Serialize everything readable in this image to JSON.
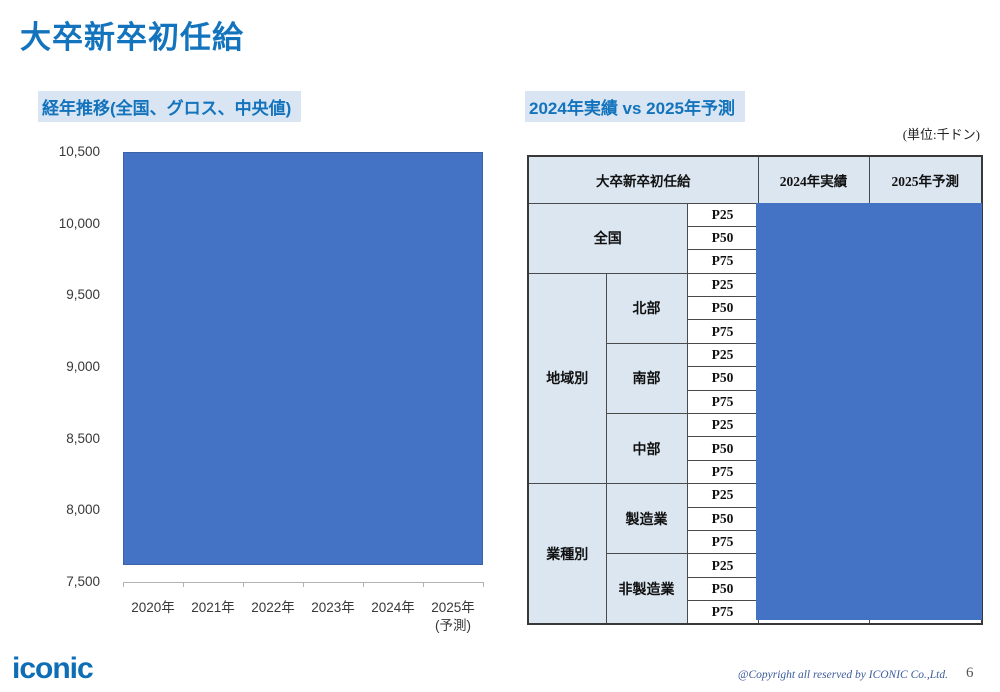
{
  "slide": {
    "title": "大卒新卒初任給",
    "page_number": "6",
    "copyright": "@Copyright all reserved by ICONIC Co.,Ltd.",
    "logo_text": "iconic"
  },
  "left_panel": {
    "heading": "経年推移(全国、グロス、中央値)"
  },
  "right_panel": {
    "heading": "2024年実績 vs 2025年予測",
    "unit_label": "(単位:千ドン)"
  },
  "chart_data": {
    "type": "bar",
    "title": "経年推移(全国、グロス、中央値)",
    "categories": [
      "2020年",
      "2021年",
      "2022年",
      "2023年",
      "2024年",
      "2025年"
    ],
    "last_category_note": "(予測)",
    "ytick_labels": [
      "10,500",
      "10,000",
      "9,500",
      "9,000",
      "8,500",
      "8,000",
      "7,500"
    ],
    "ylim": [
      7500,
      10500
    ],
    "ytick_step": 500,
    "grid": false,
    "legend": false,
    "values_hidden": true,
    "redaction_overlay_color": "#4472c4"
  },
  "table": {
    "header": {
      "col_label": "大卒新卒初任給",
      "col_2024": "2024年実績",
      "col_2025": "2025年予測"
    },
    "percentile_labels": [
      "P25",
      "P50",
      "P75"
    ],
    "groups": [
      {
        "label": "全国",
        "subgroups": [
          {
            "label": null
          }
        ]
      },
      {
        "label": "地域別",
        "subgroups": [
          {
            "label": "北部"
          },
          {
            "label": "南部"
          },
          {
            "label": "中部"
          }
        ]
      },
      {
        "label": "業種別",
        "subgroups": [
          {
            "label": "製造業"
          },
          {
            "label": "非製造業"
          }
        ]
      }
    ],
    "values_hidden": true,
    "redaction_overlay_color": "#4472c4"
  },
  "colors": {
    "accent_blue": "#1373bd",
    "heading_highlight_bg": "#d9e5f2",
    "overlay_blue": "#4472c4",
    "table_header_bg": "#dce6f1",
    "logo_blue": "#0d6eb6"
  }
}
